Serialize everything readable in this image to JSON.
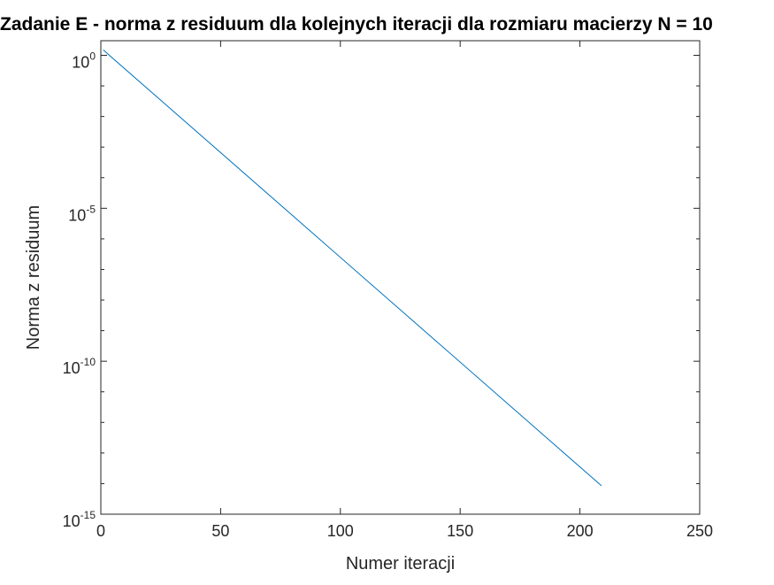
{
  "chart_data": {
    "type": "line",
    "title": "Zadanie E - norma z residuum dla kolejnych iteracji dla rozmiaru macierzy N = 10",
    "xlabel": "Numer iteracji",
    "ylabel": "Norma z residuum",
    "xlim": [
      0,
      250
    ],
    "ylim": [
      1e-15,
      3
    ],
    "yscale": "log",
    "grid": false,
    "box": true,
    "x_ticks": [
      {
        "value": 0,
        "label": "0"
      },
      {
        "value": 50,
        "label": "50"
      },
      {
        "value": 100,
        "label": "100"
      },
      {
        "value": 150,
        "label": "150"
      },
      {
        "value": 200,
        "label": "200"
      },
      {
        "value": 250,
        "label": "250"
      }
    ],
    "y_ticks": [
      {
        "value": 1,
        "base": "10",
        "exp": "0"
      },
      {
        "value": 1e-05,
        "base": "10",
        "exp": "-5"
      },
      {
        "value": 1e-10,
        "base": "10",
        "exp": "-10"
      },
      {
        "value": 1e-15,
        "base": "10",
        "exp": "-15"
      }
    ],
    "series": [
      {
        "color": "#0072bd",
        "x": [
          1,
          209
        ],
        "y": [
          1.5,
          8.5e-15
        ]
      }
    ]
  }
}
